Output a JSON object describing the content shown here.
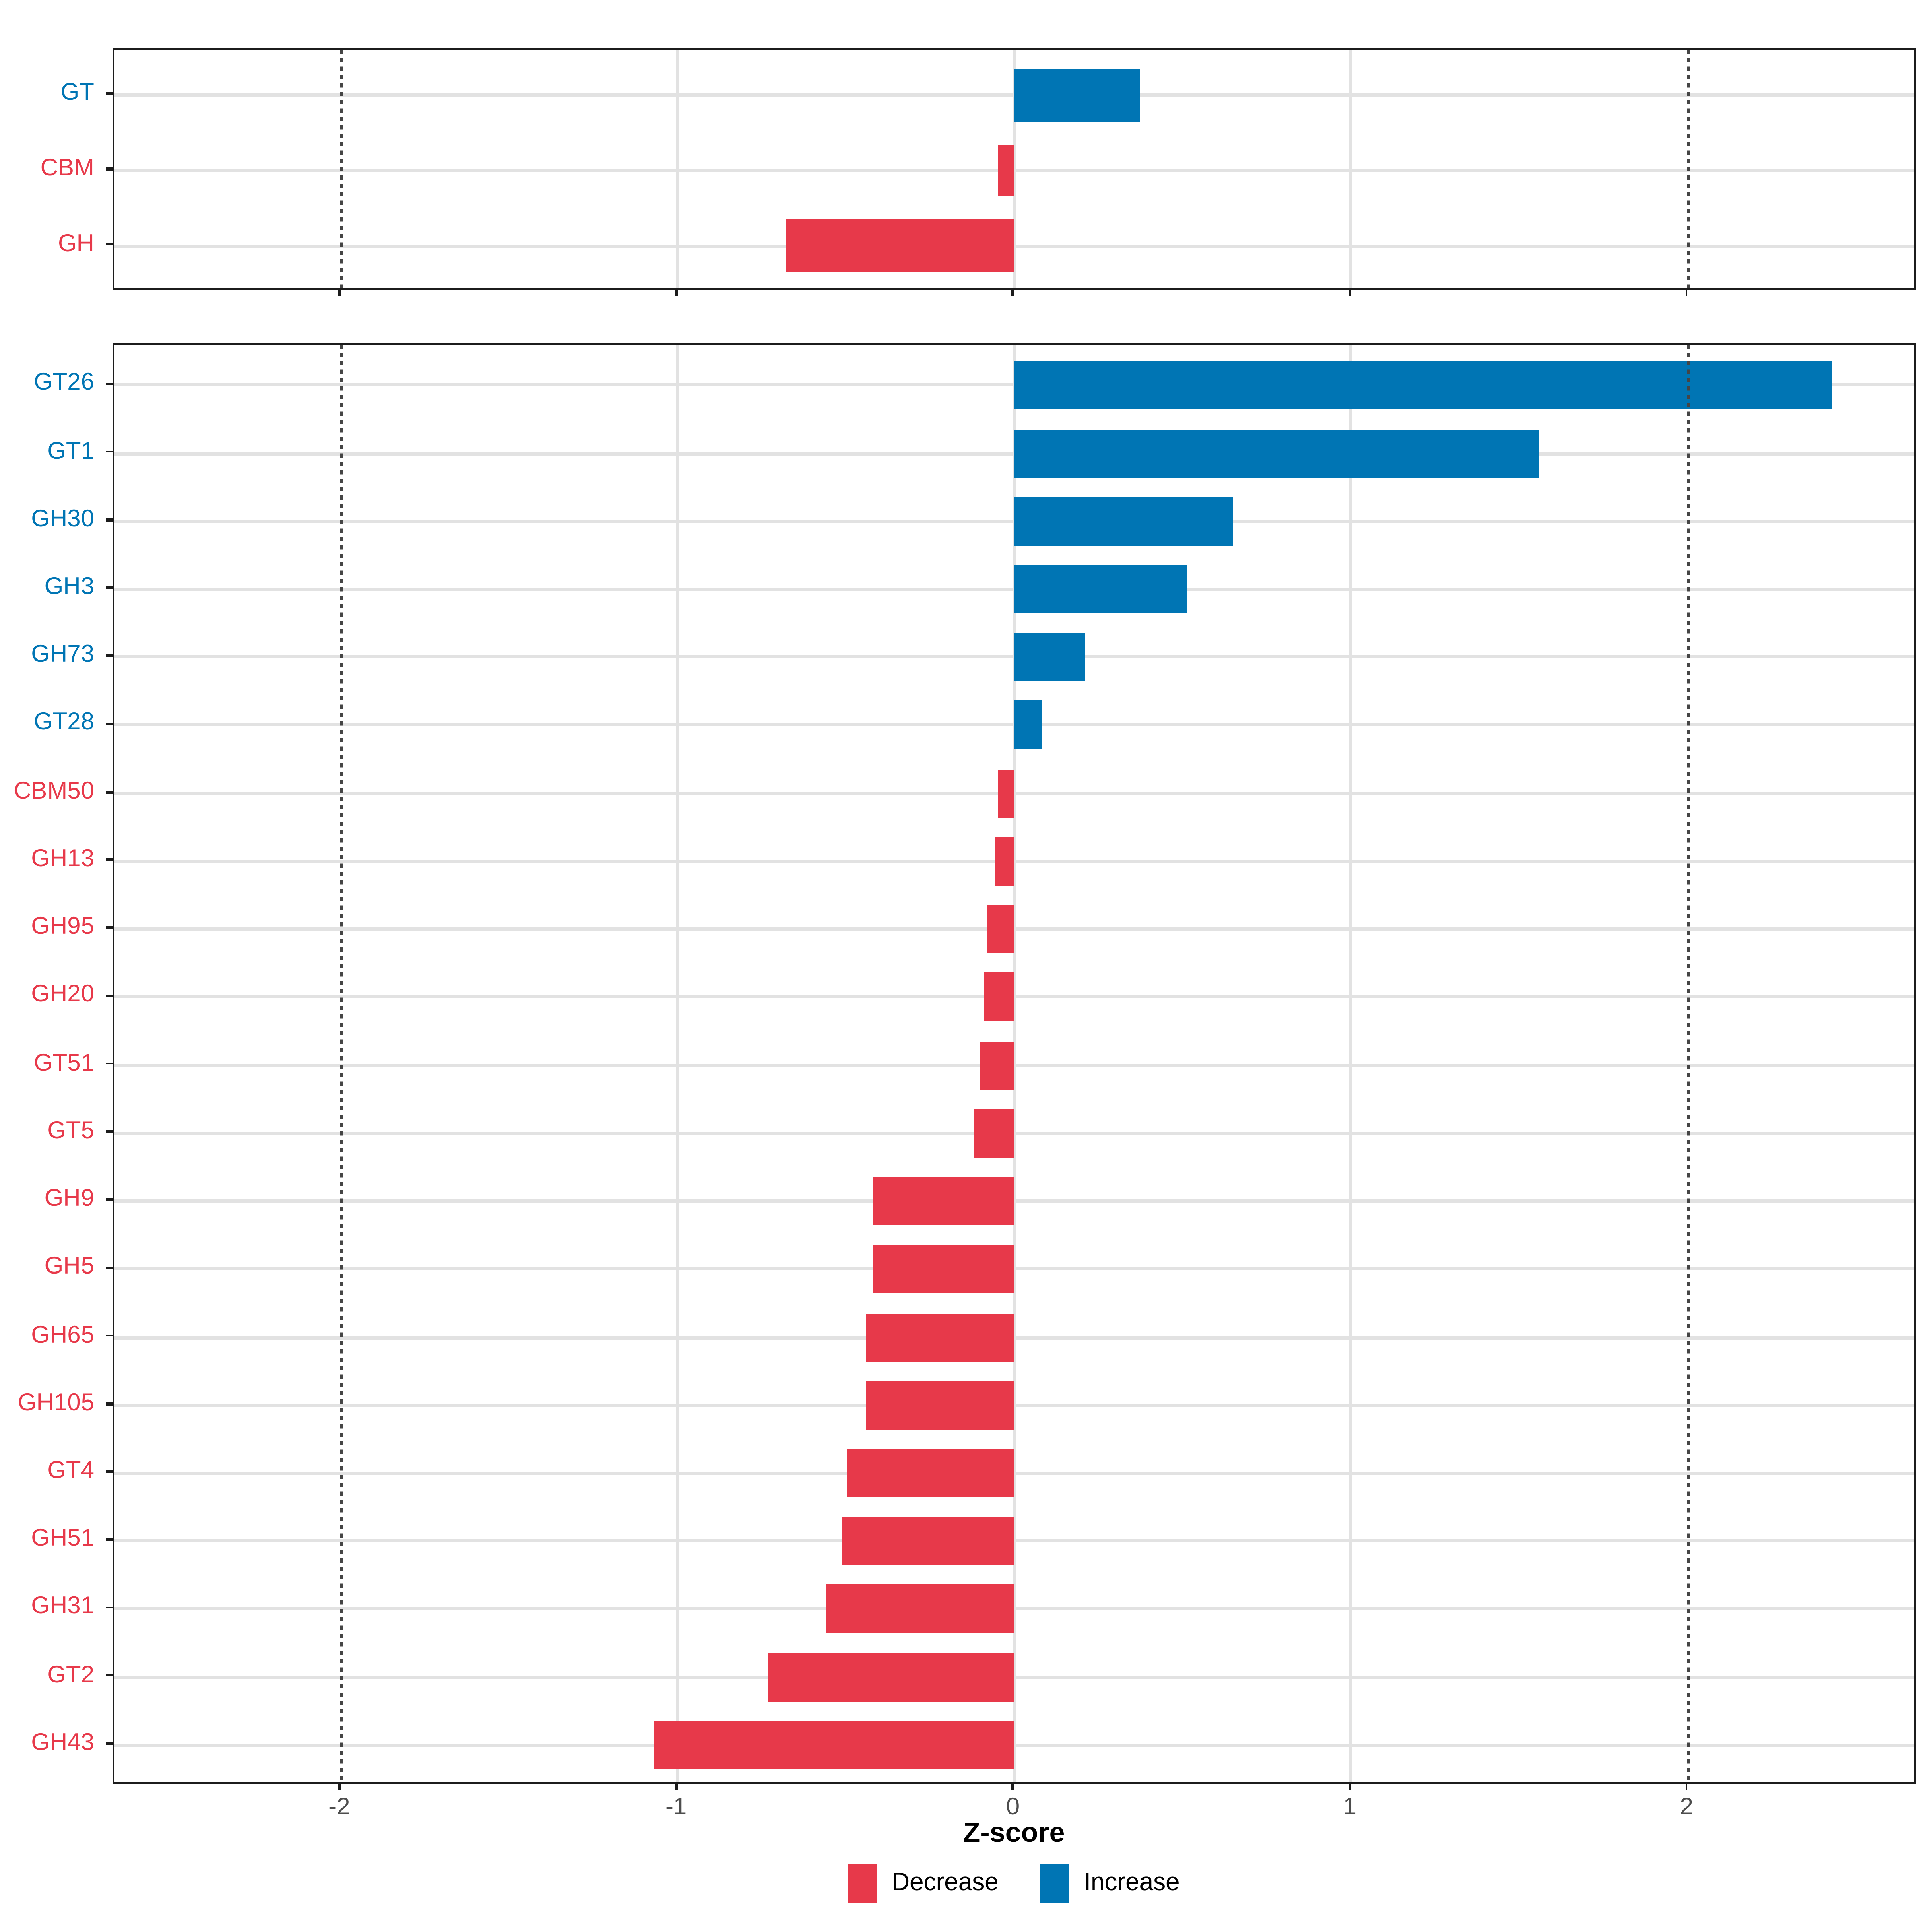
{
  "figure": {
    "background": "#ffffff"
  },
  "colors": {
    "increase": "#0075B4",
    "decrease": "#E7394A",
    "grid": "#e2e2e2",
    "dashed_line": "#454545",
    "axis_text": "#4d4d4d",
    "panel_border": "#1c1c1c"
  },
  "chart_data": {
    "type": "bar",
    "orientation": "horizontal",
    "title": "",
    "xlabel": "Z-score",
    "ylabel": "",
    "x_ticks": [
      -2,
      -1,
      0,
      1,
      2
    ],
    "x_tick_labels": [
      "-2",
      "-1",
      "0",
      "1",
      "2"
    ],
    "xlim": [
      -2.675,
      2.681
    ],
    "grid": true,
    "dashed_vlines": [
      -2,
      2
    ],
    "legend_position": "bottom",
    "legend_items": [
      {
        "label": "Decrease",
        "color": "#E7394A"
      },
      {
        "label": "Increase",
        "color": "#0075B4"
      }
    ],
    "panels": [
      {
        "name": "class-summary",
        "categories": [
          "GT",
          "CBM",
          "GH"
        ],
        "values": [
          0.37,
          -0.05,
          -0.68
        ],
        "directions": [
          "increase",
          "decrease",
          "decrease"
        ]
      },
      {
        "name": "families",
        "categories": [
          "GT26",
          "GT1",
          "GH30",
          "GH3",
          "GH73",
          "GT28",
          "CBM50",
          "GH13",
          "GH95",
          "GH20",
          "GT51",
          "GT5",
          "GH9",
          "GH5",
          "GH65",
          "GH105",
          "GT4",
          "GH51",
          "GH31",
          "GT2",
          "GH43"
        ],
        "values": [
          2.43,
          1.56,
          0.65,
          0.51,
          0.21,
          0.08,
          -0.05,
          -0.06,
          -0.08,
          -0.09,
          -0.1,
          -0.12,
          -0.42,
          -0.42,
          -0.44,
          -0.44,
          -0.5,
          -0.51,
          -0.56,
          -0.73,
          -1.07
        ],
        "directions": [
          "increase",
          "increase",
          "increase",
          "increase",
          "increase",
          "increase",
          "decrease",
          "decrease",
          "decrease",
          "decrease",
          "decrease",
          "decrease",
          "decrease",
          "decrease",
          "decrease",
          "decrease",
          "decrease",
          "decrease",
          "decrease",
          "decrease",
          "decrease"
        ]
      }
    ]
  }
}
